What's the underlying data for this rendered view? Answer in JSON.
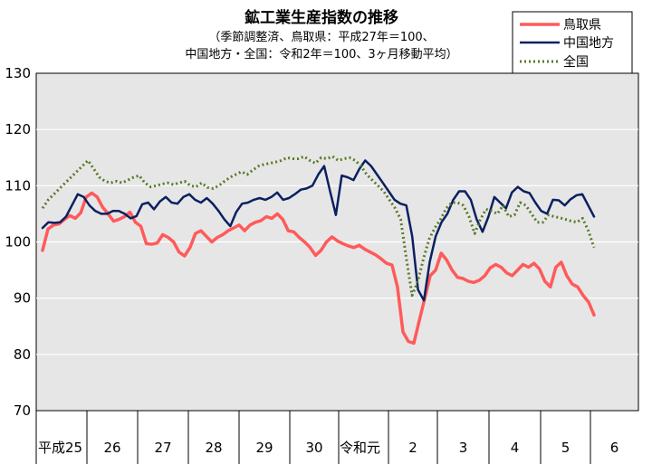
{
  "chart_data": {
    "type": "line",
    "title": "鉱工業生産指数の推移",
    "subtitle_lines": [
      "（季節調整済、鳥取県：平成27年＝100、",
      "中国地方・全国：令和2年＝100、3ヶ月移動平均）"
    ],
    "ylim": [
      70,
      130
    ],
    "yticks": [
      "130",
      "120",
      "110",
      "100",
      "90",
      "80",
      "70"
    ],
    "xtick_labels": [
      "平成25",
      "26",
      "27",
      "28",
      "29",
      "30",
      "令和元",
      "2",
      "3",
      "4",
      "5",
      "6"
    ],
    "grid": true,
    "legend_position": "top-right",
    "colors": {
      "tottori": "#ff5a5a",
      "chugoku": "#0a2060",
      "zenkoku": "#5a7a2a",
      "plot_bg": "#e6e6e6"
    },
    "series": [
      {
        "name": "鳥取県",
        "key": "tottori",
        "style": "solid",
        "values": [
          98.5,
          102.3,
          103.0,
          103.2,
          104.0,
          104.7,
          104.2,
          105.2,
          108.0,
          108.7,
          108.0,
          106.2,
          105.0,
          103.7,
          104.0,
          104.5,
          105.3,
          103.5,
          102.8,
          99.7,
          99.6,
          99.8,
          101.3,
          100.8,
          100.0,
          98.2,
          97.5,
          99.0,
          101.5,
          102.0,
          101.0,
          100.0,
          100.8,
          101.3,
          102.0,
          102.5,
          103.0,
          102.0,
          103.0,
          103.5,
          103.8,
          104.5,
          104.2,
          105.0,
          104.0,
          102.0,
          101.8,
          100.8,
          100.0,
          99.0,
          97.6,
          98.5,
          100.0,
          100.9,
          100.2,
          99.7,
          99.3,
          99.0,
          99.4,
          98.7,
          98.2,
          97.7,
          97.0,
          96.2,
          95.9,
          92.0,
          84.0,
          82.3,
          82.0,
          86.0,
          90.0,
          94.0,
          95.0,
          98.0,
          96.8,
          95.0,
          93.7,
          93.5,
          93.0,
          92.8,
          93.2,
          94.0,
          95.4,
          96.0,
          95.5,
          94.5,
          94.0,
          95.0,
          96.0,
          95.5,
          96.2,
          95.2,
          93.0,
          92.0,
          95.5,
          96.4,
          94.0,
          92.5,
          92.0,
          90.5,
          89.3,
          87.0
        ]
      },
      {
        "name": "中国地方",
        "key": "chugoku",
        "style": "solid",
        "values": [
          102.5,
          103.5,
          103.4,
          103.5,
          104.5,
          106.5,
          108.5,
          108.0,
          106.5,
          105.5,
          105.0,
          105.0,
          105.5,
          105.5,
          105.0,
          104.2,
          104.6,
          106.7,
          107.0,
          105.8,
          107.2,
          108.0,
          107.0,
          106.8,
          108.0,
          108.5,
          107.5,
          107.0,
          107.8,
          106.8,
          105.5,
          104.0,
          102.8,
          105.3,
          106.8,
          107.0,
          107.5,
          107.8,
          107.5,
          108.0,
          108.8,
          107.5,
          107.8,
          108.5,
          109.3,
          109.5,
          110.0,
          112.0,
          113.5,
          109.0,
          104.8,
          111.8,
          111.5,
          111.0,
          113.0,
          114.5,
          113.5,
          112.0,
          110.5,
          109.0,
          107.5,
          106.8,
          106.5,
          101.0,
          91.5,
          89.6,
          96.5,
          101.0,
          103.5,
          105.0,
          107.5,
          109.0,
          109.0,
          107.5,
          104.0,
          101.8,
          104.5,
          108.0,
          107.0,
          106.0,
          108.8,
          109.8,
          109.0,
          108.7,
          107.0,
          105.5,
          105.0,
          107.5,
          107.4,
          106.5,
          107.6,
          108.3,
          108.5,
          106.5,
          104.5
        ]
      },
      {
        "name": "全国",
        "key": "zenkoku",
        "style": "dotted",
        "values": [
          106.0,
          107.5,
          108.5,
          109.5,
          110.5,
          111.5,
          112.5,
          113.5,
          114.5,
          113.0,
          111.5,
          110.8,
          110.5,
          110.8,
          110.5,
          111.0,
          111.5,
          111.8,
          110.5,
          109.8,
          110.0,
          110.3,
          110.5,
          110.2,
          110.5,
          110.8,
          110.0,
          109.8,
          110.5,
          109.7,
          109.5,
          110.0,
          110.8,
          111.5,
          112.0,
          112.5,
          112.0,
          112.8,
          113.5,
          113.8,
          114.0,
          114.2,
          114.5,
          115.0,
          114.8,
          114.8,
          115.2,
          114.5,
          114.0,
          115.0,
          114.8,
          115.2,
          114.5,
          114.8,
          115.0,
          114.5,
          113.5,
          112.0,
          111.0,
          110.0,
          109.0,
          107.5,
          106.0,
          104.0,
          97.0,
          90.5,
          93.0,
          97.0,
          100.5,
          102.5,
          104.0,
          106.0,
          107.0,
          107.0,
          106.5,
          104.5,
          101.5,
          104.0,
          105.8,
          105.5,
          105.0,
          106.5,
          104.5,
          104.8,
          107.0,
          106.5,
          105.0,
          103.5,
          103.5,
          104.8,
          104.5,
          104.3,
          104.0,
          103.7,
          103.5,
          104.2,
          102.0,
          99.0
        ]
      }
    ]
  }
}
